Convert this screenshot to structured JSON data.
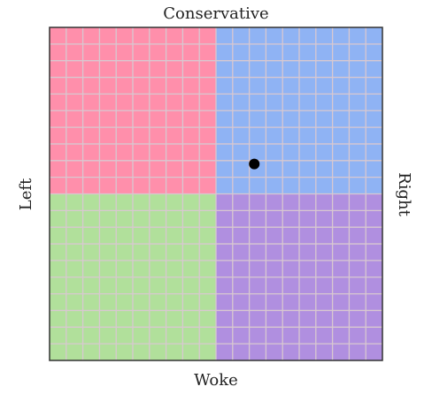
{
  "chart_data": {
    "type": "scatter",
    "labels": {
      "top": "Conservative",
      "bottom": "Woke",
      "left": "Left",
      "right": "Right"
    },
    "xlim": [
      -10,
      10
    ],
    "ylim": [
      -10,
      10
    ],
    "grid": true,
    "quadrant_colors": {
      "top_left": "#ff8fab",
      "top_right": "#8fb3f4",
      "bottom_left": "#b1e09b",
      "bottom_right": "#b08fe0"
    },
    "grid_color": "#d8c8d0",
    "series": [
      {
        "color": "#000000",
        "x": [
          2.3
        ],
        "values": [
          1.8
        ]
      }
    ]
  }
}
